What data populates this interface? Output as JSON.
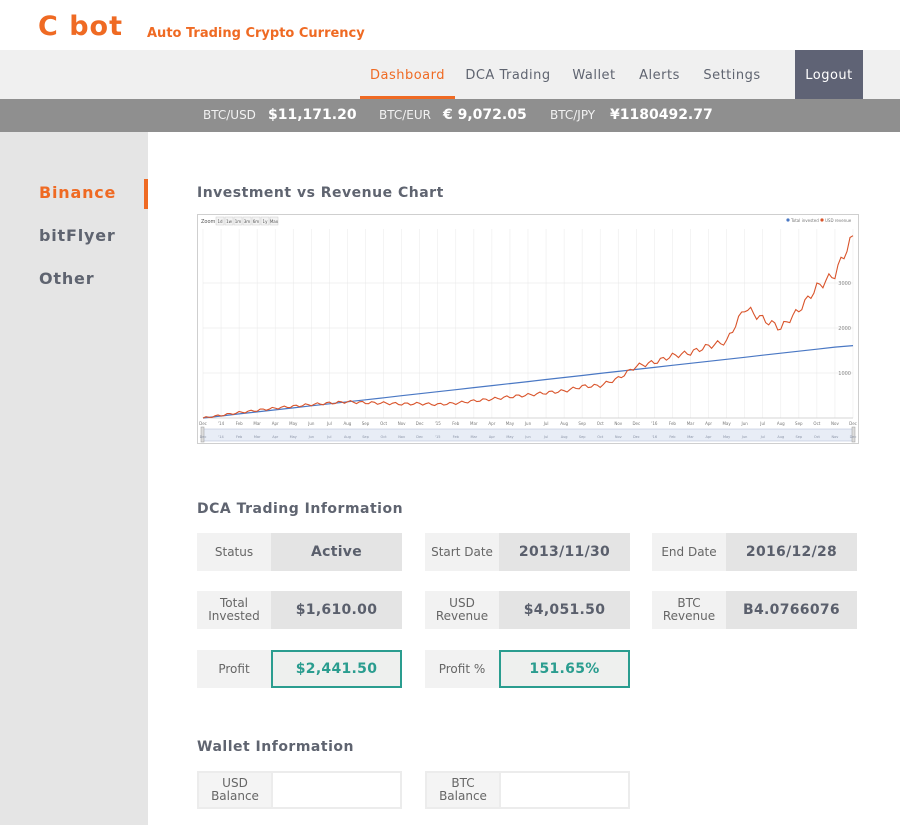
{
  "brand": {
    "logo": "C bot",
    "tagline": "Auto Trading Crypto Currency",
    "accent": "#ef6a23"
  },
  "nav": {
    "items": [
      "Dashboard",
      "DCA Trading",
      "Wallet",
      "Alerts",
      "Settings"
    ],
    "active": "Dashboard",
    "logout": "Logout"
  },
  "ticker": [
    {
      "label": "BTC/USD",
      "value": "$11,171.20"
    },
    {
      "label": "BTC/EUR",
      "value": "€ 9,072.05"
    },
    {
      "label": "BTC/JPY",
      "value": "¥1180492.77"
    }
  ],
  "sidebar": {
    "items": [
      "Binance",
      "bitFlyer",
      "Other"
    ],
    "active": "Binance"
  },
  "chart_section": {
    "title": "Investment vs Revenue Chart"
  },
  "chart_data": {
    "type": "line",
    "zoom_label": "Zoom",
    "zoom_options": [
      "1d",
      "1w",
      "1m",
      "3m",
      "6m",
      "1y",
      "Max"
    ],
    "legend": [
      "Total invested",
      "USD revenue"
    ],
    "legend_position": "top-right",
    "y_ticks": [
      1000,
      2000,
      3000
    ],
    "ylim": [
      0,
      4200
    ],
    "x_ticks": [
      "Dec",
      "'14",
      "Feb",
      "Mar",
      "Apr",
      "May",
      "Jun",
      "Jul",
      "Aug",
      "Sep",
      "Oct",
      "Nov",
      "Dec",
      "'15",
      "Feb",
      "Mar",
      "Apr",
      "May",
      "Jun",
      "Jul",
      "Aug",
      "Sep",
      "Oct",
      "Nov",
      "Dec",
      "'16",
      "Feb",
      "Mar",
      "Apr",
      "May",
      "Jun",
      "Jul",
      "Aug",
      "Sep",
      "Oct",
      "Nov",
      "Dec"
    ],
    "x_months": 37,
    "series": [
      {
        "name": "Total invested",
        "color": "#4a78c4",
        "values": [
          0,
          45,
          90,
          135,
          180,
          225,
          270,
          315,
          360,
          405,
          450,
          495,
          540,
          585,
          630,
          675,
          720,
          765,
          810,
          855,
          900,
          945,
          990,
          1035,
          1080,
          1125,
          1170,
          1215,
          1260,
          1305,
          1350,
          1395,
          1440,
          1485,
          1530,
          1575,
          1610
        ]
      },
      {
        "name": "USD revenue",
        "color": "#d9542b",
        "values": [
          0,
          60,
          120,
          170,
          220,
          260,
          300,
          330,
          360,
          340,
          330,
          310,
          320,
          300,
          330,
          380,
          420,
          470,
          510,
          560,
          600,
          700,
          720,
          880,
          1150,
          1240,
          1380,
          1450,
          1600,
          1700,
          2450,
          2200,
          2000,
          2400,
          2900,
          3200,
          4051
        ]
      }
    ]
  },
  "dca": {
    "title": "DCA Trading Information",
    "status_label": "Status",
    "status_value": "Active",
    "start_label": "Start Date",
    "start_value": "2013/11/30",
    "end_label": "End Date",
    "end_value": "2016/12/28",
    "invested_label": "Total Invested",
    "invested_value": "$1,610.00",
    "usd_rev_label": "USD Revenue",
    "usd_rev_value": "$4,051.50",
    "btc_rev_label": "BTC Revenue",
    "btc_rev_value": "B4.0766076",
    "profit_label": "Profit",
    "profit_value": "$2,441.50",
    "profit_pct_label": "Profit %",
    "profit_pct_value": "151.65%",
    "profit_color": "#2a9d8f"
  },
  "wallet": {
    "title": "Wallet Information",
    "usd_label": "USD Balance",
    "usd_value": "",
    "btc_label": "BTC Balance",
    "btc_value": ""
  }
}
